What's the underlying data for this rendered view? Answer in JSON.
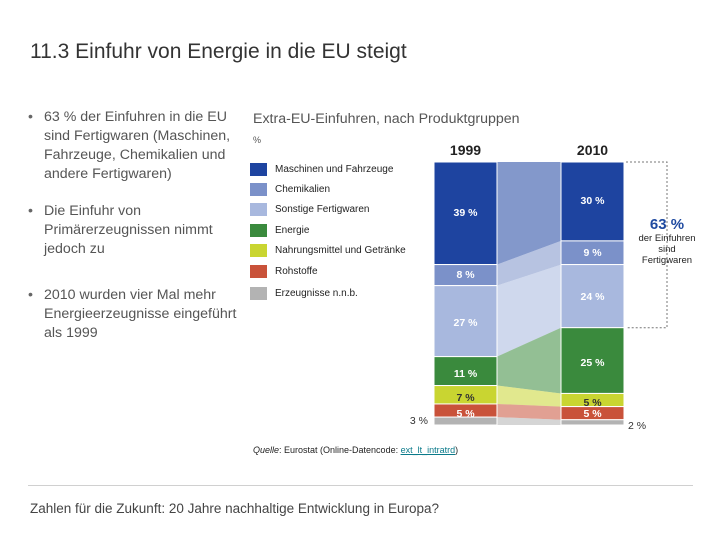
{
  "slide": {
    "number": "11.3",
    "title": "Einfuhr von Energie in die EU steigt",
    "bullets": [
      "63 % der Einfuhren in die EU sind Fertigwaren (Maschinen, Fahrzeuge, Chemikalien und andere Fertigwaren)",
      "Die Einfuhr von Primärerzeugnissen nimmt jedoch zu",
      "2010 wurden vier Mal mehr Energieerzeugnisse eingeführt als 1999"
    ],
    "footer": "Zahlen für die Zukunft: 20 Jahre nachhaltige Entwicklung in Europa?"
  },
  "chart_data": {
    "type": "bar",
    "stacked": true,
    "title": "Extra-EU-Einfuhren, nach Produktgruppen",
    "unit": "%",
    "categories": [
      "1999",
      "2010"
    ],
    "series": [
      {
        "name": "Maschinen und Fahrzeuge",
        "color": "#1e44a0",
        "values": [
          39,
          30
        ],
        "labels": [
          "39 %",
          "30 %"
        ]
      },
      {
        "name": "Chemikalien",
        "color": "#7b91c9",
        "values": [
          8,
          9
        ],
        "labels": [
          "8 %",
          "9 %"
        ]
      },
      {
        "name": "Sonstige Fertigwaren",
        "color": "#a8b8de",
        "values": [
          27,
          24
        ],
        "labels": [
          "27 %",
          "24 %"
        ]
      },
      {
        "name": "Energie",
        "color": "#3a8a3d",
        "values": [
          11,
          25
        ],
        "labels": [
          "11 %",
          "25 %"
        ]
      },
      {
        "name": "Nahrungsmittel und Getränke",
        "color": "#c9d531",
        "values": [
          7,
          5
        ],
        "labels": [
          "7 %",
          "5 %"
        ]
      },
      {
        "name": "Rohstoffe",
        "color": "#c9523a",
        "values": [
          5,
          5
        ],
        "labels": [
          "5 %",
          "5 %"
        ]
      },
      {
        "name": "Erzeugnisse n.n.b.",
        "color": "#b3b3b3",
        "values": [
          3,
          2
        ],
        "labels": [
          "3 %",
          "2 %"
        ]
      }
    ],
    "annotation": {
      "value": "63 %",
      "text": "der Einfuhren sind Fertigwaren"
    },
    "source": {
      "label": "Quelle",
      "text": ": Eurostat (Online-Datencode: ",
      "code": "ext_lt_intratrd",
      "end": ")"
    }
  }
}
